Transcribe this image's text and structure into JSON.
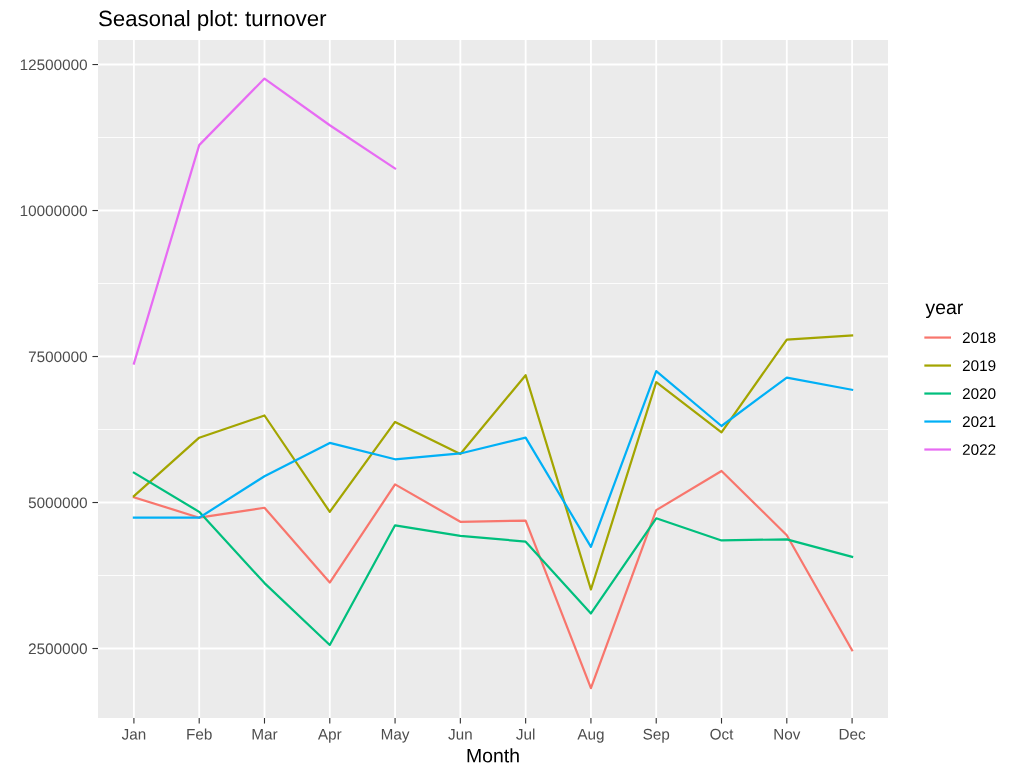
{
  "chart_data": {
    "type": "line",
    "title": "Seasonal plot: turnover",
    "xlabel": "Month",
    "legend_title": "year",
    "categories": [
      "Jan",
      "Feb",
      "Mar",
      "Apr",
      "May",
      "Jun",
      "Jul",
      "Aug",
      "Sep",
      "Oct",
      "Nov",
      "Dec"
    ],
    "series": [
      {
        "name": "2018",
        "color": "#f8766d",
        "values": [
          5090000,
          4740000,
          4910000,
          3630000,
          5310000,
          4670000,
          4690000,
          1820000,
          4870000,
          5540000,
          4440000,
          2470000
        ]
      },
      {
        "name": "2019",
        "color": "#a3a500",
        "values": [
          5110000,
          6110000,
          6490000,
          4840000,
          6380000,
          5830000,
          7180000,
          3510000,
          7060000,
          6200000,
          7790000,
          7860000
        ]
      },
      {
        "name": "2020",
        "color": "#00bf7d",
        "values": [
          5510000,
          4840000,
          3620000,
          2560000,
          4610000,
          4430000,
          4330000,
          3100000,
          4730000,
          4350000,
          4370000,
          4070000
        ]
      },
      {
        "name": "2021",
        "color": "#00b0f6",
        "values": [
          4740000,
          4740000,
          5450000,
          6020000,
          5740000,
          5840000,
          6110000,
          4240000,
          7250000,
          6310000,
          7140000,
          6930000
        ]
      },
      {
        "name": "2022",
        "color": "#e76bf3",
        "values": [
          7380000,
          11120000,
          12260000,
          11460000,
          10720000,
          null,
          null,
          null,
          null,
          null,
          null,
          null
        ]
      }
    ],
    "ylim": [
      1310000,
      12920000
    ],
    "yticks": [
      2500000,
      5000000,
      7500000,
      10000000,
      12500000
    ],
    "grid": true,
    "legend": "right",
    "marker": "none",
    "line_style": "solid"
  }
}
